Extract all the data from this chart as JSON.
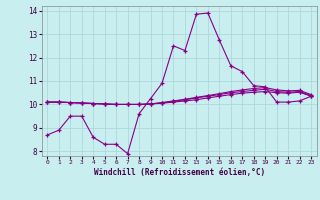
{
  "background_color": "#c8eef0",
  "grid_color": "#aad4d8",
  "line_color": "#880088",
  "marker": "+",
  "xlim": [
    -0.5,
    23.5
  ],
  "ylim": [
    7.8,
    14.2
  ],
  "yticks": [
    8,
    9,
    10,
    11,
    12,
    13,
    14
  ],
  "xticks": [
    0,
    1,
    2,
    3,
    4,
    5,
    6,
    7,
    8,
    9,
    10,
    11,
    12,
    13,
    14,
    15,
    16,
    17,
    18,
    19,
    20,
    21,
    22,
    23
  ],
  "xlabel": "Windchill (Refroidissement éolien,°C)",
  "series": [
    [
      8.7,
      8.9,
      9.5,
      9.5,
      8.6,
      8.3,
      8.3,
      7.9,
      9.6,
      10.25,
      10.9,
      12.5,
      12.3,
      13.85,
      13.9,
      12.75,
      11.65,
      11.4,
      10.8,
      10.75,
      10.1,
      10.1,
      10.15,
      10.35
    ],
    [
      10.1,
      10.1,
      10.08,
      10.06,
      10.04,
      10.02,
      10.0,
      10.0,
      10.0,
      10.02,
      10.05,
      10.1,
      10.15,
      10.2,
      10.28,
      10.35,
      10.42,
      10.48,
      10.52,
      10.55,
      10.5,
      10.48,
      10.52,
      10.35
    ],
    [
      10.1,
      10.1,
      10.08,
      10.06,
      10.04,
      10.02,
      10.0,
      10.0,
      10.0,
      10.02,
      10.07,
      10.13,
      10.2,
      10.28,
      10.35,
      10.42,
      10.5,
      10.55,
      10.6,
      10.65,
      10.55,
      10.52,
      10.55,
      10.38
    ],
    [
      10.1,
      10.1,
      10.08,
      10.06,
      10.04,
      10.02,
      10.0,
      10.0,
      10.0,
      10.02,
      10.08,
      10.15,
      10.22,
      10.3,
      10.38,
      10.46,
      10.55,
      10.62,
      10.68,
      10.72,
      10.62,
      10.58,
      10.6,
      10.42
    ]
  ]
}
